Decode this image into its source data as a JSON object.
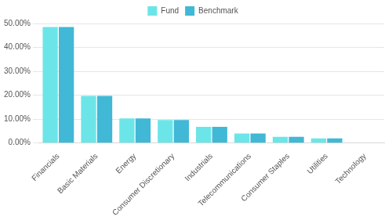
{
  "chart_data": {
    "type": "bar",
    "categories": [
      "Financials",
      "Basic Materials",
      "Energy",
      "Consumer Discretionary",
      "Industrials",
      "Telecommunications",
      "Consumer Staples",
      "Utilities",
      "Technology"
    ],
    "series": [
      {
        "name": "Fund",
        "color": "#6ce5e8",
        "values": [
          48.5,
          19.7,
          10.3,
          9.6,
          6.8,
          4.0,
          2.6,
          1.9,
          0
        ]
      },
      {
        "name": "Benchmark",
        "color": "#41b8d5",
        "values": [
          48.5,
          19.7,
          10.3,
          9.6,
          6.8,
          4.0,
          2.6,
          1.9,
          0
        ]
      }
    ],
    "ylim": [
      0,
      50
    ],
    "yticks": [
      {
        "value": 0,
        "label": "0.00%"
      },
      {
        "value": 10,
        "label": "10.00%"
      },
      {
        "value": 20,
        "label": "20.00%"
      },
      {
        "value": 30,
        "label": "30.00%"
      },
      {
        "value": 40,
        "label": "40.00%"
      },
      {
        "value": 50,
        "label": "50.00%"
      }
    ],
    "grid": true,
    "legend": "top"
  }
}
